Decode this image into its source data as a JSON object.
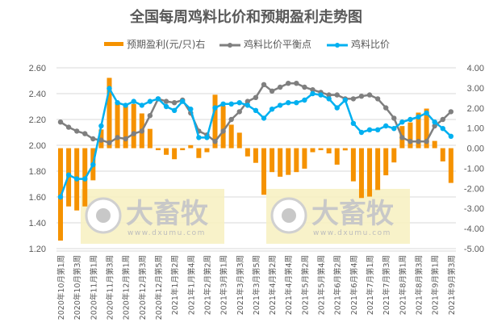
{
  "chart_data": {
    "type": "bar+line",
    "title": "全国每周鸡料比价和预期盈利走势图",
    "legend_position": "top",
    "grid": true,
    "watermark": {
      "text": "大畜牧",
      "url_text": "www.dxumu.com"
    },
    "x_tick_labels": [
      "2020年10月第1周",
      "2020年10月第3周",
      "2020年11月第1周",
      "2020年11月第3周",
      "2020年12月第1周",
      "2020年12月第3周",
      "2020年12月第5周",
      "2021年1月第2周",
      "2021年1月第4周",
      "2021年2月第2周",
      "2021年3月第1周",
      "2021年3月第3周",
      "2021年3月第5周",
      "2021年4月第2周",
      "2021年4月第4周",
      "2021年5月第2周",
      "2021年5月第4周",
      "2021年6月第2周",
      "2021年6月第4周",
      "2021年7月第1周",
      "2021年7月第3周",
      "2021年8月第1周",
      "2021年8月第3周",
      "2021年9月第1周",
      "2021年9月第3周"
    ],
    "left_axis": {
      "range": [
        1.2,
        2.6
      ],
      "ticks": [
        "1.20",
        "1.40",
        "1.60",
        "1.80",
        "2.00",
        "2.20",
        "2.40",
        "2.60"
      ]
    },
    "right_axis": {
      "range": [
        -5,
        4
      ],
      "ticks": [
        "-5.00",
        "-4.00",
        "-3.00",
        "-2.00",
        "-1.00",
        "0.00",
        "1.00",
        "2.00",
        "3.00",
        "4.00"
      ]
    },
    "series": [
      {
        "name": "预期盈利(元/只)右",
        "type": "bar",
        "axis": "right",
        "color": "#F59200",
        "values": [
          -4.6,
          -2.9,
          -3.1,
          -2.9,
          -1.6,
          0.93,
          3.5,
          2.24,
          2.1,
          2.2,
          1.73,
          0.96,
          -0.1,
          -0.33,
          -0.55,
          -0.1,
          0.15,
          -0.49,
          -0.2,
          2.66,
          2.1,
          1.17,
          0.77,
          -0.41,
          -0.73,
          -2.32,
          -1.19,
          -1.42,
          -1.33,
          -1.19,
          -1.02,
          -0.2,
          -0.1,
          -0.26,
          -0.82,
          -0.11,
          -1.65,
          -2.48,
          -2.41,
          -2.08,
          -1.35,
          -0.71,
          1.1,
          1.28,
          1.77,
          1.97,
          0.36,
          -0.66,
          -1.73
        ]
      },
      {
        "name": "鸡料比价平衡点",
        "type": "line",
        "axis": "left",
        "color": "#7F7F7F",
        "values": [
          2.18,
          2.14,
          2.11,
          2.09,
          2.05,
          2.04,
          2.02,
          2.06,
          2.05,
          2.09,
          2.11,
          2.23,
          2.36,
          2.34,
          2.33,
          2.35,
          2.25,
          2.11,
          2.08,
          2.03,
          2.11,
          2.2,
          2.26,
          2.34,
          2.37,
          2.47,
          2.42,
          2.45,
          2.48,
          2.48,
          2.45,
          2.43,
          2.41,
          2.39,
          2.39,
          2.36,
          2.36,
          2.38,
          2.39,
          2.36,
          2.29,
          2.21,
          2.06,
          2.03,
          2.03,
          2.03,
          2.15,
          2.2,
          2.26
        ]
      },
      {
        "name": "鸡料比价",
        "type": "line",
        "axis": "left",
        "color": "#00B0F0",
        "values": [
          1.6,
          1.77,
          1.74,
          1.74,
          1.85,
          2.15,
          2.44,
          2.33,
          2.31,
          2.34,
          2.31,
          2.34,
          2.36,
          2.3,
          2.27,
          2.34,
          2.28,
          2.06,
          2.06,
          2.29,
          2.32,
          2.32,
          2.33,
          2.31,
          2.27,
          2.21,
          2.28,
          2.31,
          2.33,
          2.33,
          2.35,
          2.4,
          2.39,
          2.36,
          2.29,
          2.35,
          2.17,
          2.1,
          2.12,
          2.12,
          2.15,
          2.13,
          2.18,
          2.2,
          2.22,
          2.25,
          2.18,
          2.13,
          2.07
        ]
      }
    ]
  }
}
